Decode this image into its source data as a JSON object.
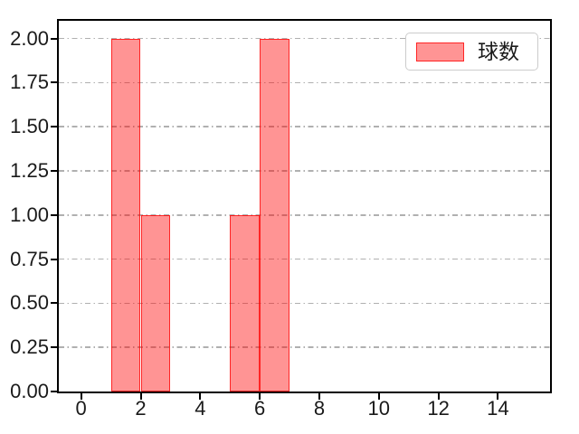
{
  "chart_data": {
    "type": "bar",
    "subtype": "histogram",
    "title": "",
    "xlabel": "",
    "ylabel": "",
    "legend": {
      "label": "球数",
      "position": "upper right"
    },
    "bars": [
      {
        "x_start": 1,
        "x_end": 2,
        "value": 2
      },
      {
        "x_start": 2,
        "x_end": 3,
        "value": 1
      },
      {
        "x_start": 5,
        "x_end": 6,
        "value": 1
      },
      {
        "x_start": 6,
        "x_end": 7,
        "value": 2
      }
    ],
    "x_ticks": [
      {
        "value": 0,
        "label": "0"
      },
      {
        "value": 2,
        "label": "2"
      },
      {
        "value": 4,
        "label": "4"
      },
      {
        "value": 6,
        "label": "6"
      },
      {
        "value": 8,
        "label": "8"
      },
      {
        "value": 10,
        "label": "10"
      },
      {
        "value": 12,
        "label": "12"
      },
      {
        "value": 14,
        "label": "14"
      }
    ],
    "y_ticks": [
      {
        "value": 0.0,
        "label": "0.00"
      },
      {
        "value": 0.25,
        "label": "0.25"
      },
      {
        "value": 0.5,
        "label": "0.50"
      },
      {
        "value": 0.75,
        "label": "0.75"
      },
      {
        "value": 1.0,
        "label": "1.00"
      },
      {
        "value": 1.25,
        "label": "1.25"
      },
      {
        "value": 1.5,
        "label": "1.50"
      },
      {
        "value": 1.75,
        "label": "1.75"
      },
      {
        "value": 2.0,
        "label": "2.00"
      }
    ],
    "xlim": [
      -0.75,
      15.75
    ],
    "ylim": [
      0,
      2.1
    ],
    "grid": {
      "axis": "y",
      "style": "dash-dot",
      "color": "#b0b0b0"
    },
    "colors": {
      "bar_fill": "#ff9696",
      "bar_edge": "#f84a4a",
      "spine": "#000000",
      "text": "#1a1a1a",
      "legend_border": "#cccccc",
      "legend_bg": "#ffffff",
      "background": "#ffffff"
    }
  }
}
